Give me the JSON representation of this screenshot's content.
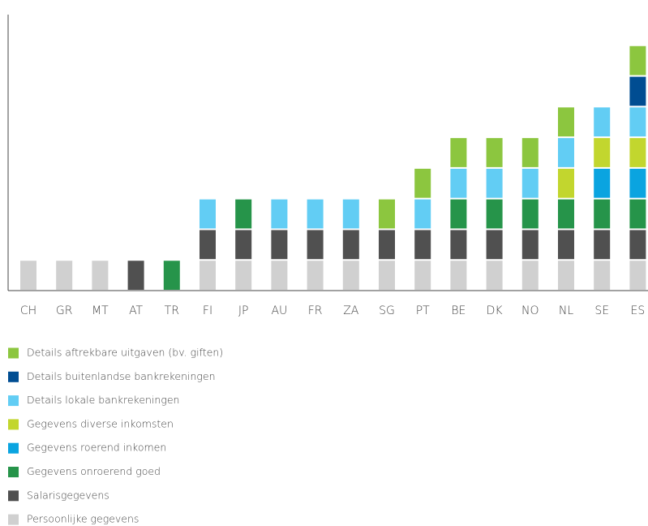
{
  "chart_data": {
    "type": "bar",
    "stacked": true,
    "categories": [
      "CH",
      "GR",
      "MT",
      "AT",
      "TR",
      "FI",
      "JP",
      "AU",
      "FR",
      "ZA",
      "SG",
      "PT",
      "BE",
      "DK",
      "NO",
      "NL",
      "SE",
      "ES"
    ],
    "ylim": [
      0,
      9
    ],
    "series": [
      {
        "name": "Persoonlijke gegevens",
        "color": "#d0d0d0",
        "values": [
          1,
          1,
          1,
          0,
          0,
          1,
          1,
          1,
          1,
          1,
          1,
          1,
          1,
          1,
          1,
          1,
          1,
          1
        ]
      },
      {
        "name": "Salarisgegevens",
        "color": "#505050",
        "values": [
          0,
          0,
          0,
          1,
          0,
          1,
          1,
          1,
          1,
          1,
          1,
          1,
          1,
          1,
          1,
          1,
          1,
          1
        ]
      },
      {
        "name": "Gegevens onroerend goed",
        "color": "#26944a",
        "values": [
          0,
          0,
          0,
          0,
          1,
          0,
          1,
          0,
          0,
          0,
          0,
          0,
          1,
          1,
          1,
          1,
          1,
          1
        ]
      },
      {
        "name": "Gegevens roerend inkomen",
        "color": "#0aa4e0",
        "values": [
          0,
          0,
          0,
          0,
          0,
          0,
          0,
          0,
          0,
          0,
          0,
          0,
          0,
          0,
          0,
          0,
          1,
          1
        ]
      },
      {
        "name": "Gegevens diverse inkomsten",
        "color": "#c2d62e",
        "values": [
          0,
          0,
          0,
          0,
          0,
          0,
          0,
          0,
          0,
          0,
          0,
          0,
          0,
          0,
          0,
          1,
          1,
          1
        ]
      },
      {
        "name": "Details lokale bankrekeningen",
        "color": "#62cdf4",
        "values": [
          0,
          0,
          0,
          0,
          0,
          1,
          0,
          1,
          1,
          1,
          0,
          1,
          1,
          1,
          1,
          1,
          1,
          1
        ]
      },
      {
        "name": "Details buitenlandse bankrekeningen",
        "color": "#004d92",
        "values": [
          0,
          0,
          0,
          0,
          0,
          0,
          0,
          0,
          0,
          0,
          0,
          0,
          0,
          0,
          0,
          0,
          0,
          1
        ]
      },
      {
        "name": "Details aftrekbare uitgaven (bv. giften)",
        "color": "#8cc63f",
        "values": [
          0,
          0,
          0,
          0,
          0,
          0,
          0,
          0,
          0,
          0,
          1,
          1,
          1,
          1,
          1,
          1,
          0,
          1
        ]
      }
    ]
  }
}
